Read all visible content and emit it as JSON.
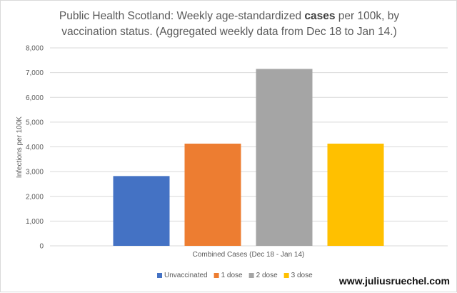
{
  "chart_data": {
    "type": "bar",
    "title": {
      "line1_prefix": "Public Health Scotland: Weekly age-standardized ",
      "line1_bold": "cases",
      "line1_suffix": " per 100k, by",
      "line2": "vaccination status. (Aggregated weekly data from Dec 18 to Jan 14.)"
    },
    "xlabel": "Combined Cases (Dec 18 - Jan 14)",
    "ylabel": "Infections per 100K",
    "ylim": [
      0,
      8000
    ],
    "yticks": [
      0,
      1000,
      2000,
      3000,
      4000,
      5000,
      6000,
      7000,
      8000
    ],
    "grid": true,
    "legend_position": "bottom",
    "series": [
      {
        "name": "Unvaccinated",
        "value": 2820,
        "color": "#4472c4"
      },
      {
        "name": "1 dose",
        "value": 4130,
        "color": "#ed7d31"
      },
      {
        "name": "2 dose",
        "value": 7150,
        "color": "#a5a5a5"
      },
      {
        "name": "3 dose",
        "value": 4130,
        "color": "#ffc000"
      }
    ]
  },
  "watermark": "www.juliusruechel.com"
}
